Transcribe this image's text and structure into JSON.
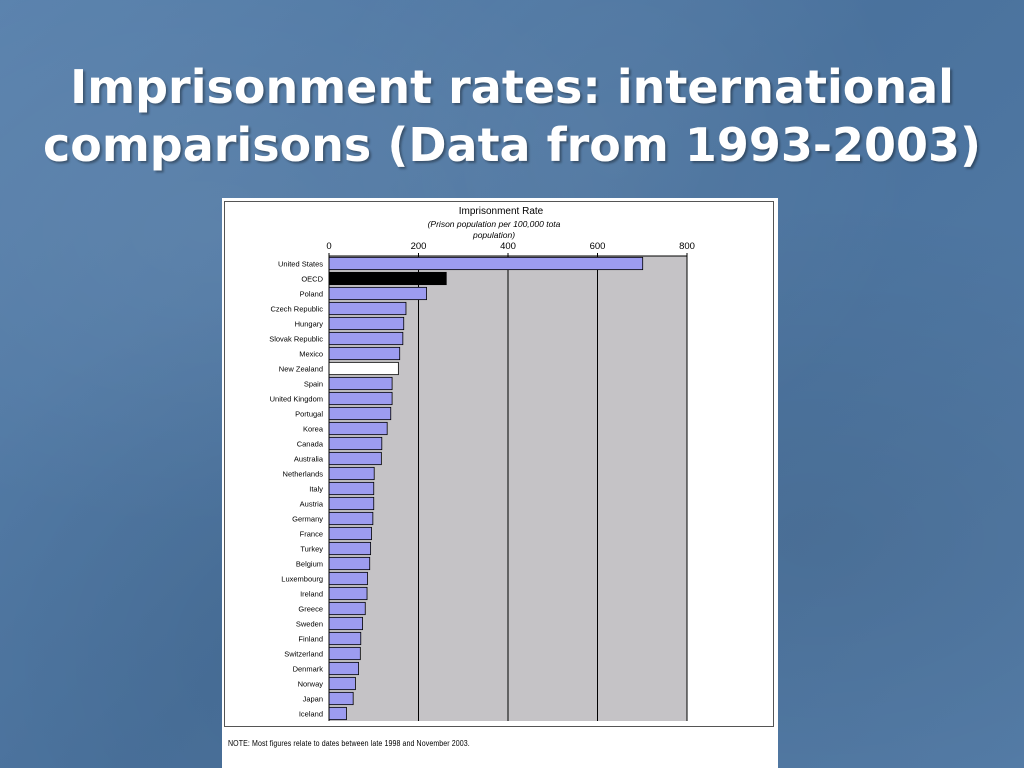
{
  "slide": {
    "title_line1": "Imprisonment rates: international",
    "title_line2": "comparisons (Data from 1993-2003)"
  },
  "note": "NOTE: Most figures relate to dates between late 1998 and November 2003.",
  "colors": {
    "background": "#4f77a3",
    "bar_default": "#9d9cf0",
    "bar_oecd": "#000000",
    "bar_new_zealand": "#ffffff",
    "plot_area": "#c5c3c6"
  },
  "chart_data": {
    "type": "bar",
    "orientation": "horizontal",
    "title": "Imprisonment Rate",
    "subtitle": "(Prison population per 100,000 tota population)",
    "xlim": [
      0,
      800
    ],
    "xticks": [
      0,
      200,
      400,
      600,
      800
    ],
    "grid": true,
    "axis_position": "top",
    "categories": [
      "United States",
      "OECD",
      "Poland",
      "Czech Republic",
      "Hungary",
      "Slovak Republic",
      "Mexico",
      "New Zealand",
      "Spain",
      "United Kingdom",
      "Portugal",
      "Korea",
      "Canada",
      "Australia",
      "Netherlands",
      "Italy",
      "Austria",
      "Germany",
      "France",
      "Turkey",
      "Belgium",
      "Luxembourg",
      "Ireland",
      "Greece",
      "Sweden",
      "Finland",
      "Switzerland",
      "Denmark",
      "Norway",
      "Japan",
      "Iceland"
    ],
    "values": [
      701,
      262,
      218,
      172,
      167,
      165,
      158,
      155,
      141,
      141,
      138,
      130,
      118,
      117,
      101,
      100,
      100,
      98,
      95,
      93,
      91,
      86,
      85,
      81,
      75,
      71,
      70,
      66,
      59,
      54,
      39
    ],
    "highlight": {
      "OECD": "#000000",
      "New Zealand": "#ffffff"
    }
  }
}
